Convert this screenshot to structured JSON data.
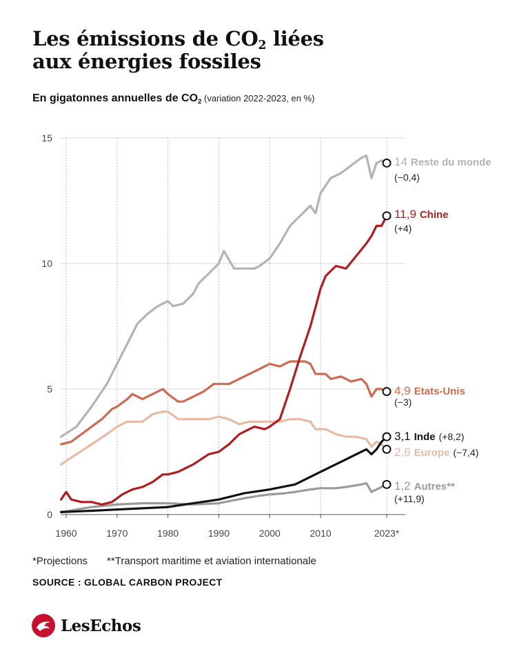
{
  "title": {
    "line1_pre": "Les émissions de CO",
    "line1_sub": "2",
    "line1_post": " liées",
    "line2": "aux énergies fossiles"
  },
  "subtitle": {
    "main_pre": "En gigatonnes annuelles de CO",
    "main_sub": "2",
    "note": " (variation 2022-2023, en %)"
  },
  "colors": {
    "reste": "#b3b3b3",
    "chine": "#b31c1c",
    "usa": "#cf6a4f",
    "europe": "#e8b9a3",
    "inde": "#111111",
    "autres": "#9a9a9a",
    "grid": "#d9d9d9",
    "vgrid": "#aaaaaa"
  },
  "chart_data": {
    "type": "line",
    "x_ticks": [
      "1960",
      "1970",
      "1980",
      "1990",
      "2000",
      "2010",
      "2023*"
    ],
    "y_ticks": [
      "0",
      "5",
      "10",
      "15"
    ],
    "xlim": [
      1957,
      2026
    ],
    "ylim": [
      0,
      15
    ],
    "series": [
      {
        "name": "Reste du monde",
        "key": "reste",
        "end_value": "14",
        "end_change": "(−0,4)",
        "x": [
          1959,
          1962,
          1965,
          1968,
          1970,
          1972,
          1974,
          1976,
          1978,
          1980,
          1981,
          1983,
          1985,
          1986,
          1988,
          1990,
          1991,
          1993,
          1995,
          1997,
          1998,
          2000,
          2002,
          2004,
          2006,
          2008,
          2009,
          2010,
          2012,
          2014,
          2016,
          2018,
          2019,
          2020,
          2021,
          2022,
          2023
        ],
        "y": [
          3.1,
          3.5,
          4.3,
          5.2,
          6.0,
          6.8,
          7.6,
          8.0,
          8.3,
          8.5,
          8.3,
          8.4,
          8.8,
          9.2,
          9.6,
          10.0,
          10.5,
          9.8,
          9.8,
          9.8,
          9.9,
          10.2,
          10.8,
          11.5,
          11.9,
          12.3,
          12.0,
          12.8,
          13.4,
          13.6,
          13.9,
          14.2,
          14.3,
          13.4,
          14.0,
          14.1,
          14.0
        ]
      },
      {
        "name": "Chine",
        "key": "chine",
        "end_value": "11,9",
        "end_change": "(+4)",
        "x": [
          1959,
          1960,
          1961,
          1963,
          1965,
          1967,
          1969,
          1971,
          1973,
          1975,
          1977,
          1979,
          1980,
          1982,
          1985,
          1988,
          1990,
          1992,
          1994,
          1996,
          1997,
          1999,
          2000,
          2002,
          2004,
          2006,
          2008,
          2010,
          2011,
          2013,
          2015,
          2017,
          2019,
          2020,
          2021,
          2022,
          2023
        ],
        "y": [
          0.6,
          0.9,
          0.6,
          0.5,
          0.5,
          0.4,
          0.5,
          0.8,
          1.0,
          1.1,
          1.3,
          1.6,
          1.6,
          1.7,
          2.0,
          2.4,
          2.5,
          2.8,
          3.2,
          3.4,
          3.5,
          3.4,
          3.5,
          3.8,
          5.0,
          6.3,
          7.5,
          9.0,
          9.5,
          9.9,
          9.8,
          10.3,
          10.8,
          11.1,
          11.5,
          11.5,
          11.9
        ]
      },
      {
        "name": "Etats-Unis",
        "key": "usa",
        "end_value": "4,9",
        "end_change": "(−3)",
        "x": [
          1959,
          1961,
          1963,
          1965,
          1967,
          1969,
          1970,
          1972,
          1973,
          1975,
          1977,
          1979,
          1980,
          1982,
          1983,
          1985,
          1987,
          1989,
          1990,
          1992,
          1994,
          1996,
          1998,
          2000,
          2002,
          2004,
          2005,
          2007,
          2008,
          2009,
          2011,
          2012,
          2014,
          2016,
          2018,
          2019,
          2020,
          2021,
          2022,
          2023
        ],
        "y": [
          2.8,
          2.9,
          3.2,
          3.5,
          3.8,
          4.2,
          4.3,
          4.6,
          4.8,
          4.6,
          4.8,
          5.0,
          4.8,
          4.5,
          4.5,
          4.7,
          4.9,
          5.2,
          5.2,
          5.2,
          5.4,
          5.6,
          5.8,
          6.0,
          5.9,
          6.1,
          6.1,
          6.1,
          6.0,
          5.6,
          5.6,
          5.4,
          5.5,
          5.3,
          5.4,
          5.2,
          4.7,
          5.0,
          5.0,
          4.9
        ]
      },
      {
        "name": "Europe",
        "key": "europe",
        "end_value": "2,6",
        "end_change": "(−7,4)",
        "x": [
          1959,
          1962,
          1965,
          1968,
          1970,
          1972,
          1974,
          1975,
          1977,
          1979,
          1980,
          1982,
          1985,
          1988,
          1990,
          1992,
          1994,
          1996,
          1998,
          2000,
          2002,
          2004,
          2006,
          2008,
          2009,
          2011,
          2013,
          2015,
          2017,
          2019,
          2020,
          2021,
          2022,
          2023
        ],
        "y": [
          2.0,
          2.4,
          2.8,
          3.2,
          3.5,
          3.7,
          3.7,
          3.7,
          4.0,
          4.1,
          4.1,
          3.8,
          3.8,
          3.8,
          3.9,
          3.8,
          3.6,
          3.7,
          3.7,
          3.7,
          3.7,
          3.8,
          3.8,
          3.7,
          3.4,
          3.4,
          3.2,
          3.1,
          3.1,
          3.0,
          2.7,
          2.9,
          2.8,
          2.6
        ]
      },
      {
        "name": "Inde",
        "key": "inde",
        "end_value": "3,1",
        "end_change": "(+8,2)",
        "x": [
          1959,
          1965,
          1970,
          1975,
          1980,
          1985,
          1990,
          1995,
          2000,
          2005,
          2010,
          2015,
          2019,
          2020,
          2021,
          2022,
          2023
        ],
        "y": [
          0.1,
          0.15,
          0.2,
          0.25,
          0.3,
          0.45,
          0.6,
          0.85,
          1.0,
          1.2,
          1.7,
          2.2,
          2.6,
          2.4,
          2.6,
          2.9,
          3.1
        ]
      },
      {
        "name": "Autres**",
        "key": "autres",
        "end_value": "1,2",
        "end_change": "(+11,9)",
        "x": [
          1959,
          1965,
          1970,
          1975,
          1980,
          1985,
          1990,
          1995,
          1998,
          2000,
          2003,
          2005,
          2008,
          2010,
          2013,
          2015,
          2018,
          2019,
          2020,
          2021,
          2022,
          2023
        ],
        "y": [
          0.1,
          0.3,
          0.4,
          0.45,
          0.45,
          0.4,
          0.45,
          0.65,
          0.75,
          0.8,
          0.85,
          0.9,
          1.0,
          1.05,
          1.05,
          1.1,
          1.2,
          1.25,
          0.9,
          1.0,
          1.1,
          1.2
        ]
      }
    ]
  },
  "footnotes": {
    "projections": "*Projections",
    "transport": "**Transport maritime et aviation internationale"
  },
  "source": "SOURCE : GLOBAL CARBON PROJECT",
  "brand": {
    "name": "LesEchos",
    "icon": "les-echos-logo-icon"
  }
}
